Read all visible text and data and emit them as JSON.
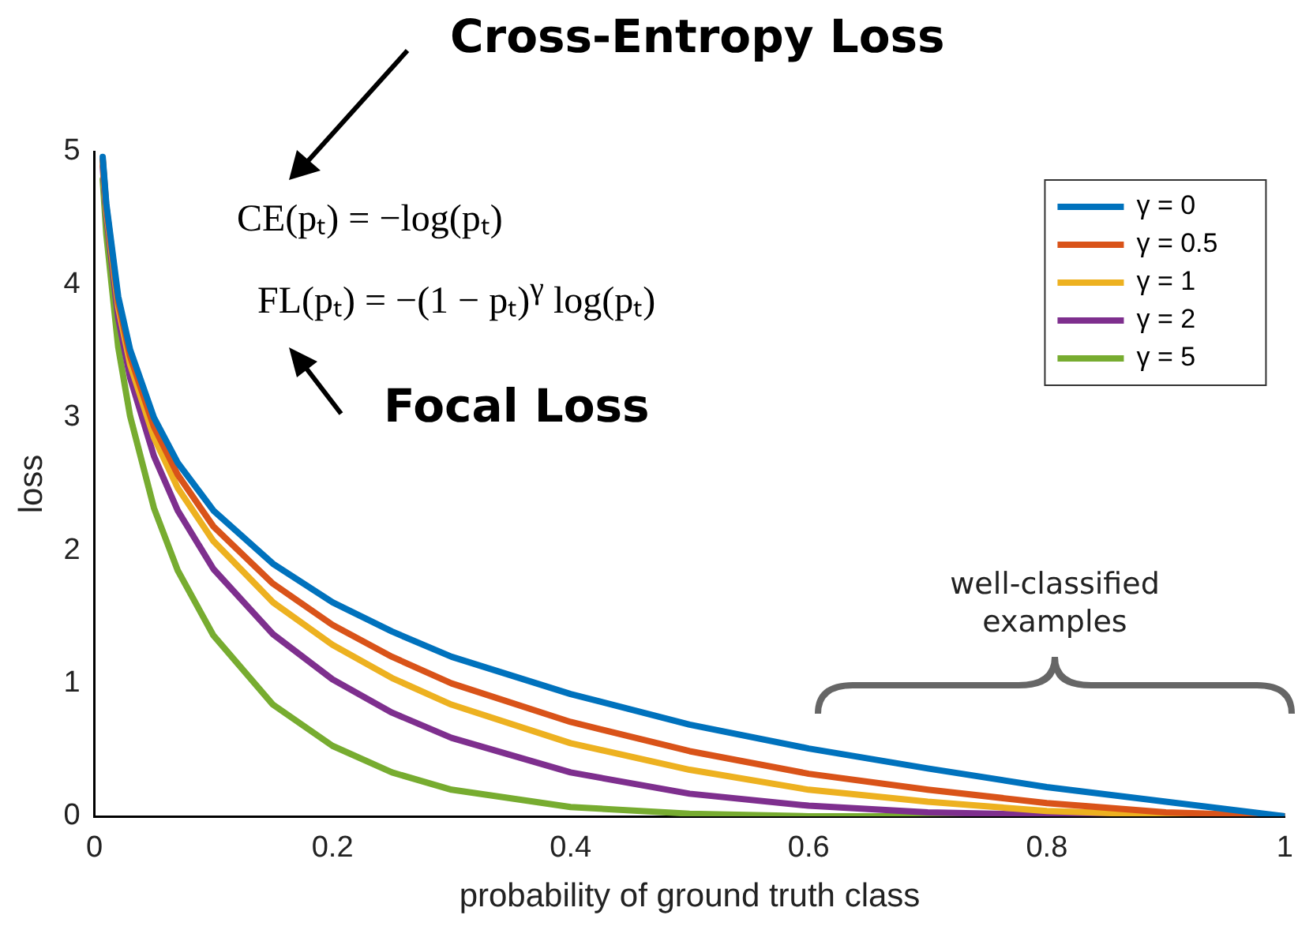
{
  "chart_data": {
    "type": "line",
    "xlabel": "probability of ground truth class",
    "ylabel": "loss",
    "x": [
      0.007,
      0.01,
      0.02,
      0.03,
      0.05,
      0.07,
      0.1,
      0.15,
      0.2,
      0.25,
      0.3,
      0.4,
      0.5,
      0.6,
      0.7,
      0.8,
      0.9,
      1.0
    ],
    "series": [
      {
        "name": "γ = 0",
        "color": "#0072bd",
        "values": [
          4.96,
          4.61,
          3.91,
          3.51,
          3.0,
          2.66,
          2.3,
          1.9,
          1.61,
          1.39,
          1.2,
          0.92,
          0.69,
          0.51,
          0.36,
          0.22,
          0.11,
          0
        ]
      },
      {
        "name": "γ = 0.5",
        "color": "#d95319",
        "values": [
          4.94,
          4.59,
          3.87,
          3.46,
          2.93,
          2.57,
          2.18,
          1.75,
          1.44,
          1.2,
          1.0,
          0.71,
          0.49,
          0.32,
          0.2,
          0.1,
          0.03,
          0
        ]
      },
      {
        "name": "γ = 1",
        "color": "#edb120",
        "values": [
          4.93,
          4.56,
          3.83,
          3.4,
          2.85,
          2.47,
          2.07,
          1.61,
          1.29,
          1.04,
          0.84,
          0.55,
          0.35,
          0.2,
          0.11,
          0.04,
          0.01,
          0
        ]
      },
      {
        "name": "γ = 2",
        "color": "#7e2f8e",
        "values": [
          4.89,
          4.52,
          3.75,
          3.3,
          2.71,
          2.3,
          1.86,
          1.37,
          1.03,
          0.78,
          0.59,
          0.33,
          0.17,
          0.08,
          0.03,
          0.01,
          0,
          0
        ]
      },
      {
        "name": "γ = 5",
        "color": "#77ac30",
        "values": [
          4.79,
          4.38,
          3.53,
          3.01,
          2.32,
          1.85,
          1.36,
          0.84,
          0.53,
          0.33,
          0.2,
          0.07,
          0.02,
          0,
          0,
          0,
          null,
          null
        ]
      }
    ],
    "xlim": [
      0,
      1
    ],
    "xticks": [
      0,
      0.2,
      0.4,
      0.6,
      0.8,
      1
    ],
    "ylim": [
      0,
      5
    ],
    "yticks": [
      0,
      1,
      2,
      3,
      4,
      5
    ],
    "grid": false,
    "legend": "top right",
    "marker": "none",
    "line_style": "solid",
    "annotations": [
      "Cross-Entropy Loss",
      "CE(pₜ) = −log(pₜ)",
      "FL(pₜ) = −(1 − pₜ)$^{γ}$ log(pₜ)",
      "Focal Loss",
      "well-classified examples"
    ]
  }
}
